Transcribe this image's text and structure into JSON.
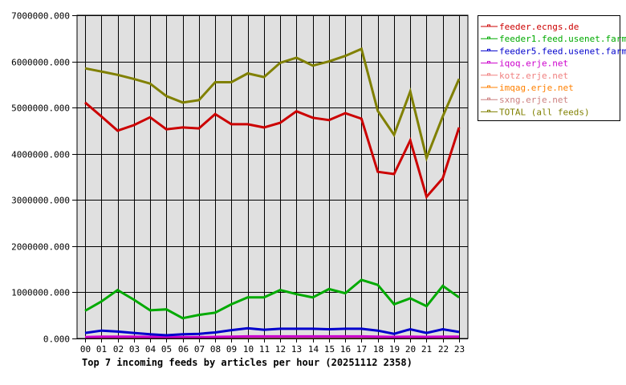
{
  "chart_data": {
    "type": "line",
    "title": "Top 7 incoming feeds by articles per hour (20251112 2358)",
    "xlabel": "",
    "ylabel": "",
    "ylim": [
      0,
      7000000
    ],
    "grid": true,
    "legend_position": "right",
    "y_ticks": [
      "0.000",
      "1000000.000",
      "2000000.000",
      "3000000.000",
      "4000000.000",
      "5000000.000",
      "6000000.000",
      "7000000.000"
    ],
    "x": [
      "00",
      "01",
      "02",
      "03",
      "04",
      "05",
      "06",
      "07",
      "08",
      "09",
      "10",
      "11",
      "12",
      "13",
      "14",
      "15",
      "16",
      "17",
      "18",
      "19",
      "20",
      "21",
      "22",
      "23"
    ],
    "series": [
      {
        "name": "feeder.ecngs.de",
        "color": "#cc0000",
        "values": [
          5110000,
          4810000,
          4500000,
          4620000,
          4790000,
          4530000,
          4570000,
          4550000,
          4860000,
          4640000,
          4640000,
          4570000,
          4670000,
          4920000,
          4780000,
          4730000,
          4880000,
          4760000,
          3610000,
          3560000,
          4290000,
          3070000,
          3470000,
          4570000
        ]
      },
      {
        "name": "feeder1.feed.usenet.farm",
        "color": "#00aa00",
        "values": [
          600000,
          800000,
          1050000,
          840000,
          610000,
          630000,
          440000,
          510000,
          560000,
          740000,
          890000,
          890000,
          1050000,
          960000,
          890000,
          1070000,
          980000,
          1270000,
          1160000,
          740000,
          870000,
          700000,
          1140000,
          890000
        ]
      },
      {
        "name": "feeder5.feed.usenet.farm",
        "color": "#0000cc",
        "values": [
          120000,
          170000,
          150000,
          120000,
          90000,
          70000,
          90000,
          100000,
          130000,
          180000,
          220000,
          190000,
          210000,
          210000,
          210000,
          200000,
          210000,
          210000,
          170000,
          100000,
          200000,
          120000,
          200000,
          140000
        ]
      },
      {
        "name": "iqoq.erje.net",
        "color": "#cc00cc",
        "values": [
          30000,
          40000,
          40000,
          40000,
          35000,
          30000,
          30000,
          30000,
          35000,
          40000,
          45000,
          45000,
          45000,
          45000,
          45000,
          45000,
          45000,
          45000,
          40000,
          35000,
          40000,
          35000,
          40000,
          40000
        ]
      },
      {
        "name": "kotz.erje.net",
        "color": "#f08080",
        "values": [
          20000,
          20000,
          20000,
          20000,
          20000,
          20000,
          20000,
          20000,
          20000,
          20000,
          20000,
          20000,
          20000,
          20000,
          20000,
          20000,
          20000,
          20000,
          20000,
          20000,
          20000,
          20000,
          20000,
          20000
        ]
      },
      {
        "name": "imqag.erje.net",
        "color": "#ff8000",
        "values": [
          15000,
          15000,
          15000,
          15000,
          15000,
          15000,
          15000,
          15000,
          15000,
          15000,
          15000,
          15000,
          15000,
          15000,
          15000,
          15000,
          15000,
          15000,
          15000,
          15000,
          15000,
          15000,
          15000,
          15000
        ]
      },
      {
        "name": "sxng.erje.net",
        "color": "#cc8080",
        "values": [
          25000,
          25000,
          25000,
          25000,
          25000,
          25000,
          25000,
          25000,
          25000,
          25000,
          25000,
          25000,
          25000,
          25000,
          25000,
          25000,
          25000,
          25000,
          25000,
          25000,
          25000,
          25000,
          25000,
          25000
        ]
      },
      {
        "name": "TOTAL (all feeds)",
        "color": "#808000",
        "values": [
          5850000,
          5780000,
          5710000,
          5620000,
          5520000,
          5250000,
          5110000,
          5160000,
          5550000,
          5550000,
          5740000,
          5660000,
          5970000,
          6080000,
          5910000,
          6000000,
          6120000,
          6270000,
          4930000,
          4410000,
          5350000,
          3910000,
          4810000,
          5620000
        ]
      }
    ]
  },
  "plot": {
    "background": "#e0e0e0",
    "grid_color": "#000000"
  }
}
